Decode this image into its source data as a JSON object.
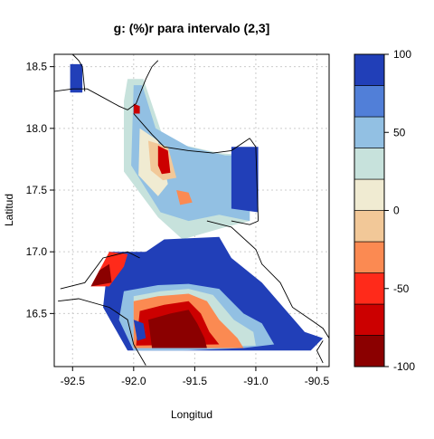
{
  "chart_data": {
    "type": "heatmap",
    "title": "g:   (%)r para intervalo (2,3]",
    "xlabel": "Longitud",
    "ylabel": "Latitud",
    "xlim": [
      -92.65,
      -90.4
    ],
    "ylim": [
      16.07,
      18.6
    ],
    "x_ticks": [
      {
        "value": -92.5,
        "label": "-92.5"
      },
      {
        "value": -92.0,
        "label": "-92.0"
      },
      {
        "value": -91.5,
        "label": "-91.5"
      },
      {
        "value": -91.0,
        "label": "-91.0"
      },
      {
        "value": -90.5,
        "label": "-90.5"
      }
    ],
    "y_ticks": [
      {
        "value": 16.5,
        "label": "16.5"
      },
      {
        "value": 17.0,
        "label": "17.0"
      },
      {
        "value": 17.5,
        "label": "17.5"
      },
      {
        "value": 18.0,
        "label": "18.0"
      },
      {
        "value": 18.5,
        "label": "18.5"
      }
    ],
    "grid": true,
    "colorbar": {
      "min": -100,
      "max": 100,
      "tick_labels": [
        {
          "value": -100,
          "label": "-100"
        },
        {
          "value": -50,
          "label": "-50"
        },
        {
          "value": 0,
          "label": "0"
        },
        {
          "value": 50,
          "label": "50"
        },
        {
          "value": 100,
          "label": "100"
        }
      ],
      "bins": [
        {
          "from": -100,
          "to": -80,
          "color": "#8b0000"
        },
        {
          "from": -80,
          "to": -60,
          "color": "#cc0000"
        },
        {
          "from": -60,
          "to": -40,
          "color": "#ff2a1a"
        },
        {
          "from": -40,
          "to": -20,
          "color": "#fb8a52"
        },
        {
          "from": -20,
          "to": 0,
          "color": "#f2c898"
        },
        {
          "from": 0,
          "to": 20,
          "color": "#f0ebd2"
        },
        {
          "from": 20,
          "to": 40,
          "color": "#c7e2dc"
        },
        {
          "from": 40,
          "to": 60,
          "color": "#92c0e3"
        },
        {
          "from": 60,
          "to": 80,
          "color": "#517fd8"
        },
        {
          "from": 80,
          "to": 100,
          "color": "#213fb8"
        }
      ]
    },
    "regions": [
      {
        "value": 90,
        "points": [
          [
            -92.52,
            18.52
          ],
          [
            -92.42,
            18.52
          ],
          [
            -92.42,
            18.29
          ],
          [
            -92.52,
            18.29
          ]
        ]
      },
      {
        "value": 30,
        "points": [
          [
            -92.05,
            18.4
          ],
          [
            -91.92,
            18.4
          ],
          [
            -91.75,
            17.9
          ],
          [
            -91.3,
            17.8
          ],
          [
            -91.05,
            17.78
          ],
          [
            -91.05,
            17.25
          ],
          [
            -91.25,
            17.2
          ],
          [
            -91.6,
            17.1
          ],
          [
            -91.8,
            17.28
          ],
          [
            -92.08,
            17.65
          ],
          [
            -92.08,
            18.22
          ]
        ]
      },
      {
        "value": 50,
        "points": [
          [
            -92.0,
            18.35
          ],
          [
            -91.93,
            18.35
          ],
          [
            -91.82,
            18.0
          ],
          [
            -91.55,
            17.85
          ],
          [
            -91.25,
            17.78
          ],
          [
            -91.05,
            17.78
          ],
          [
            -91.05,
            17.25
          ],
          [
            -91.3,
            17.3
          ],
          [
            -91.55,
            17.25
          ],
          [
            -91.78,
            17.32
          ],
          [
            -92.02,
            17.7
          ]
        ]
      },
      {
        "value": 90,
        "points": [
          [
            -91.2,
            17.85
          ],
          [
            -90.98,
            17.85
          ],
          [
            -90.98,
            17.32
          ],
          [
            -91.2,
            17.35
          ]
        ]
      },
      {
        "value": 10,
        "points": [
          [
            -91.95,
            18.0
          ],
          [
            -91.8,
            17.9
          ],
          [
            -91.72,
            17.55
          ],
          [
            -91.8,
            17.45
          ],
          [
            -91.96,
            17.62
          ]
        ]
      },
      {
        "value": -10,
        "points": [
          [
            -91.88,
            17.9
          ],
          [
            -91.72,
            17.85
          ],
          [
            -91.65,
            17.6
          ],
          [
            -91.76,
            17.58
          ],
          [
            -91.86,
            17.66
          ]
        ]
      },
      {
        "value": -60,
        "points": [
          [
            -91.8,
            17.86
          ],
          [
            -91.72,
            17.82
          ],
          [
            -91.7,
            17.64
          ],
          [
            -91.77,
            17.63
          ],
          [
            -91.8,
            17.7
          ]
        ]
      },
      {
        "value": -30,
        "points": [
          [
            -91.65,
            17.5
          ],
          [
            -91.55,
            17.48
          ],
          [
            -91.52,
            17.4
          ],
          [
            -91.62,
            17.38
          ]
        ]
      },
      {
        "value": -70,
        "points": [
          [
            -92.0,
            18.2
          ],
          [
            -91.95,
            18.18
          ],
          [
            -91.95,
            18.12
          ],
          [
            -92.0,
            18.12
          ]
        ]
      },
      {
        "value": 90,
        "points": [
          [
            -92.2,
            17.0
          ],
          [
            -91.9,
            17.0
          ],
          [
            -91.75,
            17.1
          ],
          [
            -91.3,
            17.12
          ],
          [
            -91.2,
            16.95
          ],
          [
            -90.95,
            16.75
          ],
          [
            -90.6,
            16.35
          ],
          [
            -90.45,
            16.3
          ],
          [
            -90.55,
            16.2
          ],
          [
            -92.05,
            16.2
          ],
          [
            -92.25,
            16.55
          ]
        ]
      },
      {
        "value": 60,
        "points": [
          [
            -92.08,
            16.68
          ],
          [
            -91.8,
            16.73
          ],
          [
            -91.55,
            16.74
          ],
          [
            -91.3,
            16.7
          ],
          [
            -91.1,
            16.5
          ],
          [
            -90.95,
            16.42
          ],
          [
            -90.85,
            16.25
          ],
          [
            -91.1,
            16.22
          ],
          [
            -91.6,
            16.2
          ],
          [
            -92.0,
            16.2
          ],
          [
            -92.12,
            16.45
          ]
        ]
      },
      {
        "value": 30,
        "points": [
          [
            -92.0,
            16.64
          ],
          [
            -91.78,
            16.68
          ],
          [
            -91.55,
            16.7
          ],
          [
            -91.35,
            16.65
          ],
          [
            -91.18,
            16.45
          ],
          [
            -91.02,
            16.35
          ],
          [
            -91.0,
            16.24
          ],
          [
            -92.0,
            16.22
          ]
        ]
      },
      {
        "value": -30,
        "points": [
          [
            -92.0,
            16.6
          ],
          [
            -91.8,
            16.64
          ],
          [
            -91.55,
            16.66
          ],
          [
            -91.4,
            16.6
          ],
          [
            -91.3,
            16.45
          ],
          [
            -91.15,
            16.3
          ],
          [
            -91.1,
            16.22
          ],
          [
            -92.0,
            16.22
          ]
        ]
      },
      {
        "value": -70,
        "points": [
          [
            -91.95,
            16.52
          ],
          [
            -91.75,
            16.57
          ],
          [
            -91.55,
            16.6
          ],
          [
            -91.45,
            16.5
          ],
          [
            -91.38,
            16.35
          ],
          [
            -91.3,
            16.25
          ],
          [
            -91.98,
            16.24
          ]
        ]
      },
      {
        "value": -90,
        "points": [
          [
            -91.88,
            16.45
          ],
          [
            -91.7,
            16.5
          ],
          [
            -91.55,
            16.53
          ],
          [
            -91.48,
            16.42
          ],
          [
            -91.42,
            16.3
          ],
          [
            -91.4,
            16.22
          ],
          [
            -91.85,
            16.22
          ]
        ]
      },
      {
        "value": 90,
        "points": [
          [
            -92.0,
            16.45
          ],
          [
            -91.92,
            16.42
          ],
          [
            -91.9,
            16.3
          ],
          [
            -91.97,
            16.28
          ]
        ]
      },
      {
        "value": -50,
        "points": [
          [
            -92.2,
            17.0
          ],
          [
            -92.05,
            16.98
          ],
          [
            -92.08,
            16.88
          ],
          [
            -92.2,
            16.72
          ],
          [
            -92.35,
            16.72
          ]
        ]
      },
      {
        "value": -90,
        "points": [
          [
            -92.2,
            16.9
          ],
          [
            -92.18,
            16.75
          ],
          [
            -92.35,
            16.72
          ],
          [
            -92.28,
            16.85
          ]
        ]
      }
    ],
    "coastline": [
      [
        [
          -92.65,
          18.3
        ],
        [
          -92.5,
          18.32
        ],
        [
          -92.38,
          18.32
        ],
        [
          -92.25,
          18.25
        ],
        [
          -92.12,
          18.18
        ],
        [
          -92.05,
          18.15
        ],
        [
          -91.98,
          18.2
        ],
        [
          -91.9,
          18.4
        ],
        [
          -91.85,
          18.5
        ],
        [
          -91.8,
          18.55
        ]
      ],
      [
        [
          -92.5,
          18.6
        ],
        [
          -92.45,
          18.55
        ],
        [
          -92.42,
          18.5
        ],
        [
          -92.4,
          18.3
        ]
      ],
      [
        [
          -92.0,
          18.12
        ],
        [
          -91.85,
          17.95
        ],
        [
          -91.75,
          17.85
        ],
        [
          -91.55,
          17.82
        ],
        [
          -91.35,
          17.8
        ],
        [
          -91.2,
          17.82
        ],
        [
          -91.05,
          17.92
        ]
      ],
      [
        [
          -91.05,
          17.92
        ],
        [
          -91.0,
          17.85
        ],
        [
          -90.98,
          17.25
        ]
      ],
      [
        [
          -91.2,
          17.25
        ],
        [
          -91.05,
          17.22
        ],
        [
          -90.98,
          17.25
        ]
      ],
      [
        [
          -92.6,
          16.7
        ],
        [
          -92.4,
          16.75
        ],
        [
          -92.25,
          16.95
        ],
        [
          -92.05,
          17.0
        ],
        [
          -91.95,
          16.95
        ]
      ],
      [
        [
          -92.62,
          16.6
        ],
        [
          -92.45,
          16.62
        ],
        [
          -92.2,
          16.55
        ],
        [
          -92.05,
          16.45
        ],
        [
          -92.0,
          16.25
        ],
        [
          -91.9,
          16.08
        ]
      ],
      [
        [
          -91.4,
          17.25
        ],
        [
          -91.2,
          17.2
        ],
        [
          -91.0,
          17.02
        ],
        [
          -90.95,
          16.9
        ],
        [
          -90.8,
          16.75
        ],
        [
          -90.7,
          16.55
        ],
        [
          -90.55,
          16.45
        ],
        [
          -90.45,
          16.38
        ],
        [
          -90.4,
          16.3
        ]
      ],
      [
        [
          -90.45,
          16.1
        ],
        [
          -90.5,
          16.2
        ],
        [
          -90.45,
          16.28
        ]
      ]
    ]
  }
}
